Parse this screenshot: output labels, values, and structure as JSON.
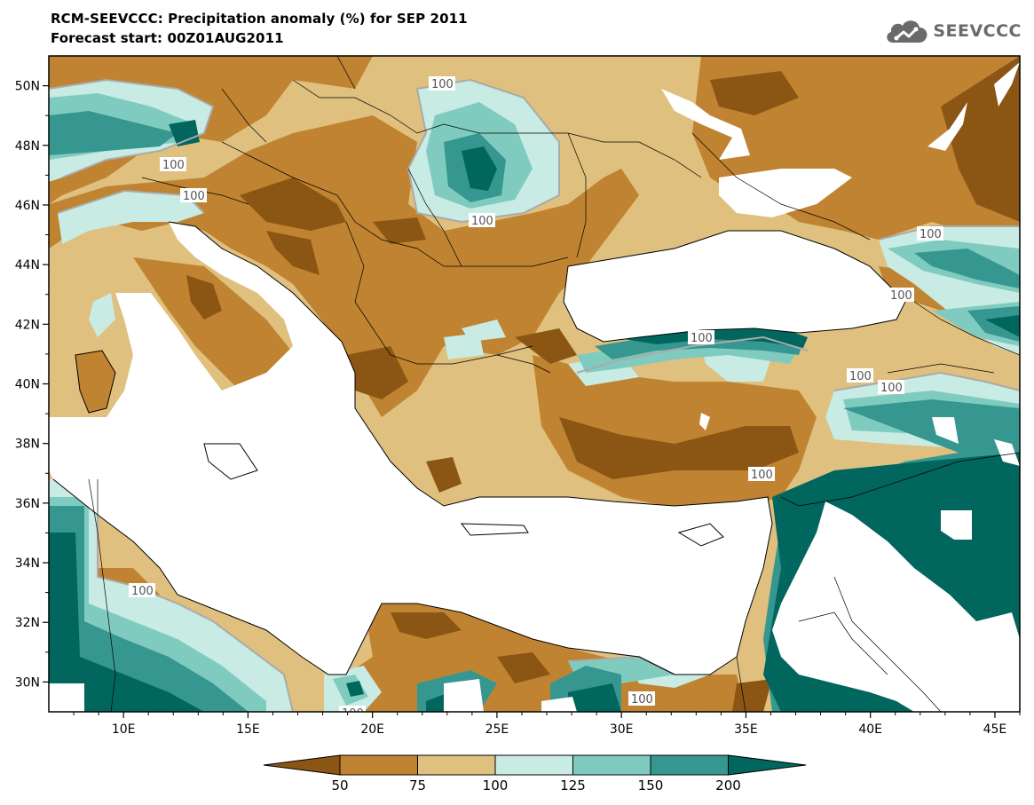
{
  "header": {
    "title_line1": "RCM-SEEVCCC: Precipitation anomaly (%) for SEP 2011",
    "title_line2": "Forecast start: 00Z01AUG2011",
    "logo_text": "SEEVCCC"
  },
  "map": {
    "lon_range": [
      7,
      46
    ],
    "lat_range": [
      29,
      51
    ],
    "x_ticks": [
      "10E",
      "15E",
      "20E",
      "25E",
      "30E",
      "35E",
      "40E",
      "45E"
    ],
    "y_ticks": [
      "50N",
      "48N",
      "46N",
      "44N",
      "42N",
      "40N",
      "38N",
      "36N",
      "34N",
      "32N",
      "30N"
    ],
    "contour_labels": [
      "100",
      "100",
      "100",
      "100",
      "100",
      "100",
      "100",
      "100",
      "100",
      "100",
      "100",
      "100",
      "100"
    ]
  },
  "colorbar": {
    "labels": [
      "50",
      "75",
      "100",
      "125",
      "150",
      "200"
    ],
    "colors": {
      "lt50": "#8b5514",
      "50_75": "#bf8331",
      "75_100": "#dfc07e",
      "100_125": "#c8ebe4",
      "125_150": "#80cbbf",
      "150_200": "#35978f",
      "gt200": "#01665e"
    }
  }
}
